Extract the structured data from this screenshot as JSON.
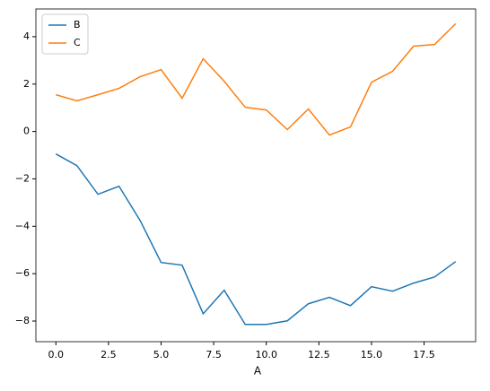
{
  "chart_data": {
    "type": "line",
    "xlabel": "A",
    "x": [
      0,
      1,
      2,
      3,
      4,
      5,
      6,
      7,
      8,
      9,
      10,
      11,
      12,
      13,
      14,
      15,
      16,
      17,
      18,
      19
    ],
    "series": [
      {
        "name": "B",
        "color": "#1f77b4",
        "values": [
          -0.95,
          -1.44,
          -2.65,
          -2.31,
          -3.75,
          -5.53,
          -5.64,
          -7.69,
          -6.7,
          -8.14,
          -8.14,
          -7.99,
          -7.27,
          -7.0,
          -7.35,
          -6.55,
          -6.74,
          -6.4,
          -6.14,
          -5.49
        ]
      },
      {
        "name": "C",
        "color": "#ff7f0e",
        "values": [
          1.55,
          1.29,
          1.55,
          1.82,
          2.31,
          2.61,
          1.4,
          3.07,
          2.12,
          1.02,
          0.91,
          0.08,
          0.95,
          -0.15,
          0.19,
          2.08,
          2.54,
          3.6,
          3.67,
          4.55
        ]
      }
    ],
    "xlim": [
      -0.95,
      19.95
    ],
    "ylim": [
      -8.87,
      5.17
    ],
    "xticks": [
      {
        "value": 0,
        "label": "0.0"
      },
      {
        "value": 2.5,
        "label": "2.5"
      },
      {
        "value": 5,
        "label": "5.0"
      },
      {
        "value": 7.5,
        "label": "7.5"
      },
      {
        "value": 10,
        "label": "10.0"
      },
      {
        "value": 12.5,
        "label": "12.5"
      },
      {
        "value": 15,
        "label": "15.0"
      },
      {
        "value": 17.5,
        "label": "17.5"
      }
    ],
    "yticks": [
      {
        "value": -8,
        "label": "−8"
      },
      {
        "value": -6,
        "label": "−6"
      },
      {
        "value": -4,
        "label": "−4"
      },
      {
        "value": -2,
        "label": "−2"
      },
      0,
      2,
      4
    ],
    "grid": false,
    "legend": "upper left"
  }
}
